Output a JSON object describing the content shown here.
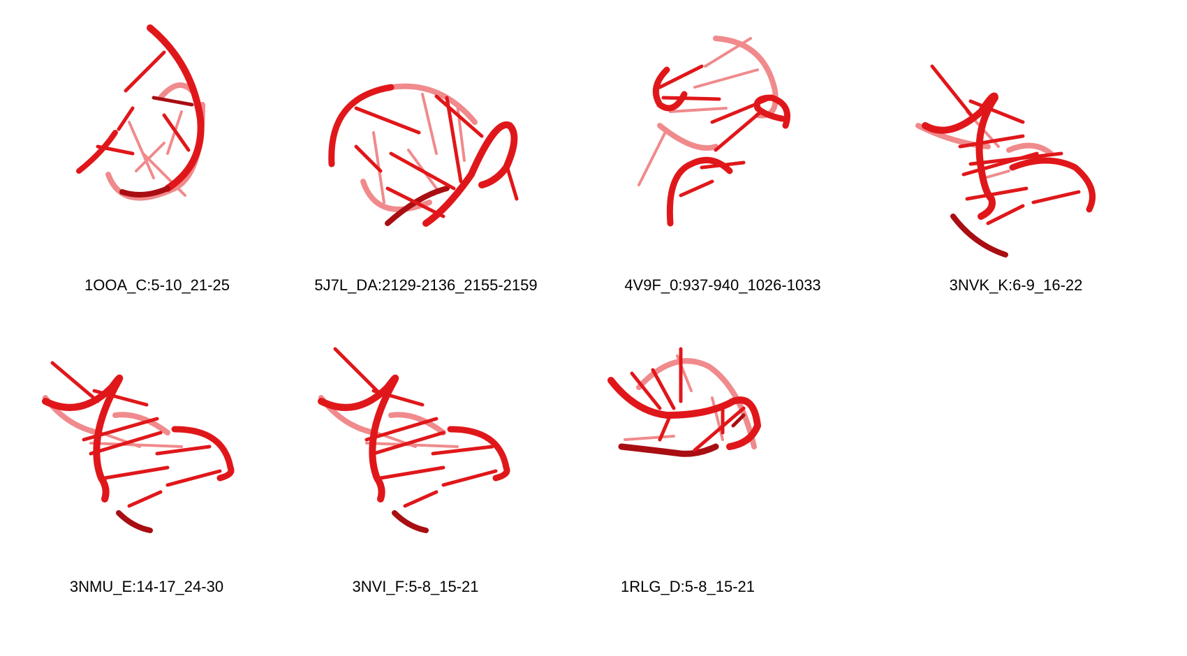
{
  "colors": {
    "strand": "#e0171a",
    "strand_dark": "#a80e12",
    "strand_light": "#f08a8c"
  },
  "structures": [
    {
      "id": "1OOA_C:5-10_21-25",
      "icon": "rna-helix-structure"
    },
    {
      "id": "5J7L_DA:2129-2136_2155-2159",
      "icon": "rna-helix-structure"
    },
    {
      "id": "4V9F_0:937-940_1026-1033",
      "icon": "rna-helix-structure"
    },
    {
      "id": "3NVK_K:6-9_16-22",
      "icon": "rna-helix-structure"
    },
    {
      "id": "3NMU_E:14-17_24-30",
      "icon": "rna-helix-structure"
    },
    {
      "id": "3NVI_F:5-8_15-21",
      "icon": "rna-helix-structure"
    },
    {
      "id": "1RLG_D:5-8_15-21",
      "icon": "rna-helix-structure"
    }
  ]
}
